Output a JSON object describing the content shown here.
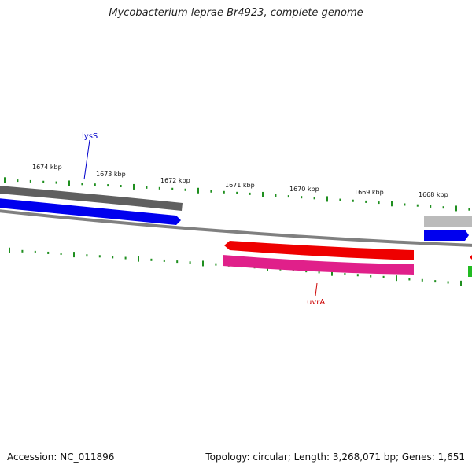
{
  "header": {
    "title": "Mycobacterium leprae Br4923, complete genome"
  },
  "footer": {
    "accession": "Accession: NC_011896",
    "summary": "Topology: circular; Length: 3,268,071 bp; Genes: 1,651"
  },
  "ruler": {
    "labels": [
      "1674 kbp",
      "1673 kbp",
      "1672 kbp",
      "1671 kbp",
      "1670 kbp",
      "1669 kbp",
      "1668 kbp"
    ]
  },
  "genes": {
    "lysS": {
      "label": "lysS",
      "color": "#0000cc"
    },
    "uvrA": {
      "label": "uvrA",
      "color": "#cc0000"
    }
  },
  "colors": {
    "backbone": "#808080",
    "ticks": "#1f8f1f",
    "forward_cds": "#0000ee",
    "forward_feature": "#666666",
    "reverse_cds": "#ee0000",
    "reverse_feature": "#e0208a",
    "light_feature": "#bbbbbb",
    "green_feature": "#22bb22"
  }
}
